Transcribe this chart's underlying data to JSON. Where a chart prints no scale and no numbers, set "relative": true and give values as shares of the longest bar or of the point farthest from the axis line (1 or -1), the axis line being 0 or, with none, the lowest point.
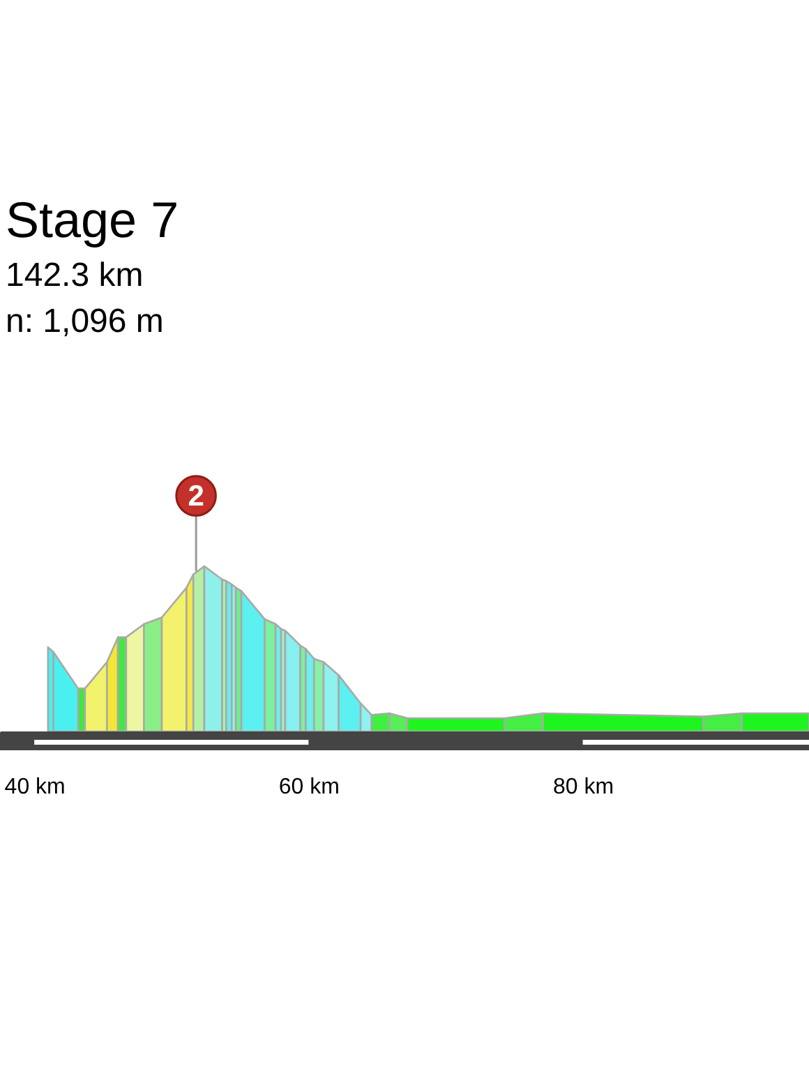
{
  "chart_data": {
    "type": "area",
    "relative": true,
    "title": "Stage 7",
    "subtitle": "142.3 km",
    "annotations": [
      "n: 1,096 m",
      {
        "text": "2",
        "x": 51.8,
        "y": 0.97
      }
    ],
    "xlim": [
      37.5,
      96.5
    ],
    "xticks": [
      {
        "value": 40,
        "label": "40 km"
      },
      {
        "value": 60,
        "label": "60 km"
      },
      {
        "value": 80,
        "label": "80 km"
      }
    ],
    "series": [
      {
        "color": "#4af0f0",
        "x": [
          41.0,
          41.4
        ],
        "values": [
          0.51,
          0.48
        ]
      },
      {
        "color": "#4af0f0",
        "x": [
          41.4,
          43.2
        ],
        "values": [
          0.48,
          0.26
        ]
      },
      {
        "color": "#3ee83e",
        "x": [
          43.2,
          43.7
        ],
        "values": [
          0.26,
          0.26
        ]
      },
      {
        "color": "#f2f26c",
        "x": [
          43.7,
          45.3
        ],
        "values": [
          0.26,
          0.42
        ]
      },
      {
        "color": "#f4e636",
        "x": [
          45.3,
          46.1
        ],
        "values": [
          0.42,
          0.57
        ]
      },
      {
        "color": "#44e844",
        "x": [
          46.1,
          46.7
        ],
        "values": [
          0.57,
          0.57
        ]
      },
      {
        "color": "#eef6a2",
        "x": [
          46.7,
          48.0
        ],
        "values": [
          0.57,
          0.65
        ]
      },
      {
        "color": "#8aee86",
        "x": [
          48.0,
          49.3
        ],
        "values": [
          0.65,
          0.69
        ]
      },
      {
        "color": "#f2f26c",
        "x": [
          49.3,
          51.1
        ],
        "values": [
          0.69,
          0.87
        ]
      },
      {
        "color": "#f4e84a",
        "x": [
          51.1,
          51.6
        ],
        "values": [
          0.87,
          0.95
        ]
      },
      {
        "color": "#b4f0a4",
        "x": [
          51.6,
          52.4
        ],
        "values": [
          0.95,
          1.0
        ]
      },
      {
        "color": "#8ef0ea",
        "x": [
          52.4,
          53.7
        ],
        "values": [
          1.0,
          0.92
        ]
      },
      {
        "color": "#a8f0a8",
        "x": [
          53.7,
          54.0
        ],
        "values": [
          0.92,
          0.91
        ]
      },
      {
        "color": "#66eef0",
        "x": [
          54.0,
          54.4
        ],
        "values": [
          0.91,
          0.89
        ]
      },
      {
        "color": "#8ef0ea",
        "x": [
          54.4,
          54.7
        ],
        "values": [
          0.89,
          0.87
        ]
      },
      {
        "color": "#6eee8e",
        "x": [
          54.7,
          55.1
        ],
        "values": [
          0.87,
          0.85
        ]
      },
      {
        "color": "#5cf0f0",
        "x": [
          55.1,
          56.8
        ],
        "values": [
          0.85,
          0.68
        ]
      },
      {
        "color": "#7cf09c",
        "x": [
          56.8,
          57.6
        ],
        "values": [
          0.68,
          0.65
        ]
      },
      {
        "color": "#6cf0f0",
        "x": [
          57.6,
          58.0
        ],
        "values": [
          0.65,
          0.62
        ]
      },
      {
        "color": "#a0f0c8",
        "x": [
          58.0,
          58.3
        ],
        "values": [
          0.62,
          0.61
        ]
      },
      {
        "color": "#88f0ee",
        "x": [
          58.3,
          59.4
        ],
        "values": [
          0.61,
          0.52
        ]
      },
      {
        "color": "#7cf09c",
        "x": [
          59.4,
          59.8
        ],
        "values": [
          0.52,
          0.5
        ]
      },
      {
        "color": "#6cf0f0",
        "x": [
          59.8,
          60.4
        ],
        "values": [
          0.5,
          0.44
        ]
      },
      {
        "color": "#88f0a8",
        "x": [
          60.4,
          61.1
        ],
        "values": [
          0.44,
          0.42
        ]
      },
      {
        "color": "#8ef2ee",
        "x": [
          61.1,
          62.2
        ],
        "values": [
          0.42,
          0.34
        ]
      },
      {
        "color": "#5cf0f0",
        "x": [
          62.2,
          63.8
        ],
        "values": [
          0.34,
          0.17
        ]
      },
      {
        "color": "#8ef2ee",
        "x": [
          63.8,
          64.6
        ],
        "values": [
          0.17,
          0.1
        ]
      },
      {
        "color": "#40f040",
        "x": [
          64.6,
          65.9
        ],
        "values": [
          0.1,
          0.11
        ]
      },
      {
        "color": "#58ee58",
        "x": [
          65.9,
          67.2
        ],
        "values": [
          0.11,
          0.08
        ]
      },
      {
        "color": "#1ef51e",
        "x": [
          67.2,
          74.3
        ],
        "values": [
          0.08,
          0.08
        ]
      },
      {
        "color": "#44ee44",
        "x": [
          74.3,
          77.1
        ],
        "values": [
          0.08,
          0.11
        ]
      },
      {
        "color": "#1ef51e",
        "x": [
          77.1,
          88.8
        ],
        "values": [
          0.11,
          0.09
        ]
      },
      {
        "color": "#44ee44",
        "x": [
          88.8,
          91.6
        ],
        "values": [
          0.09,
          0.11
        ]
      },
      {
        "color": "#1ef51e",
        "x": [
          91.6,
          96.5
        ],
        "values": [
          0.11,
          0.11
        ]
      }
    ]
  }
}
